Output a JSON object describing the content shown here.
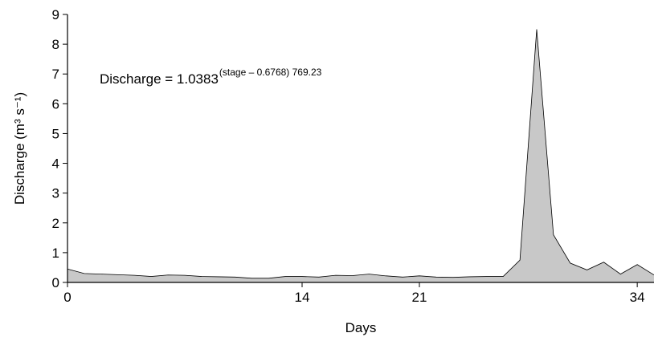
{
  "chart_data": {
    "type": "area",
    "annotation": "Discharge = 1.0383",
    "annotation_exponent": "(stage – 0.6768) 769.23",
    "x_label": "Days",
    "y_label": "Discharge (m³ s⁻¹)",
    "x": [
      0,
      1,
      2,
      3,
      4,
      5,
      6,
      7,
      8,
      9,
      10,
      11,
      12,
      13,
      14,
      15,
      16,
      17,
      18,
      19,
      20,
      21,
      22,
      23,
      24,
      25,
      26,
      27,
      28,
      29,
      30,
      31,
      32,
      33,
      34,
      35
    ],
    "values": [
      0.45,
      0.3,
      0.28,
      0.26,
      0.24,
      0.2,
      0.25,
      0.24,
      0.2,
      0.19,
      0.18,
      0.14,
      0.14,
      0.2,
      0.2,
      0.18,
      0.24,
      0.23,
      0.28,
      0.22,
      0.18,
      0.22,
      0.18,
      0.17,
      0.19,
      0.2,
      0.2,
      0.75,
      8.5,
      1.6,
      0.65,
      0.42,
      0.68,
      0.28,
      0.6,
      0.25
    ],
    "color": "#c8c8c8",
    "xlim": [
      0,
      35
    ],
    "xticks": [
      0,
      14,
      21,
      34
    ],
    "ylim": [
      0,
      9
    ],
    "yticks": [
      0,
      1,
      2,
      3,
      4,
      5,
      6,
      7,
      8,
      9
    ]
  }
}
